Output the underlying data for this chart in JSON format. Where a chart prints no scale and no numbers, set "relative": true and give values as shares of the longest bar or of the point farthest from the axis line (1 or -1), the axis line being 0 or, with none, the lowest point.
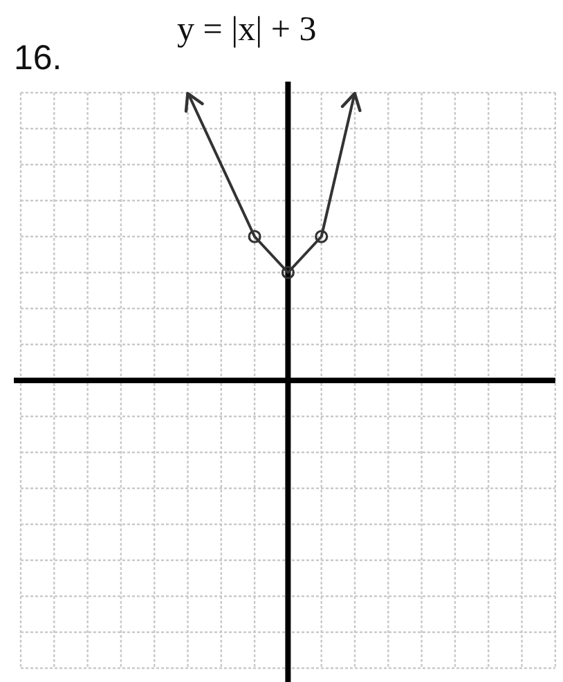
{
  "chart_data": {
    "type": "line",
    "title": "y = |x| + 3",
    "annotations": [
      "16."
    ],
    "categories": [
      null,
      null,
      null,
      null,
      null,
      null,
      null,
      null,
      null,
      null,
      null,
      null,
      null,
      null,
      null,
      null,
      null
    ],
    "values": [
      null,
      null,
      null,
      null,
      null,
      1,
      null,
      0.5,
      0.375,
      0.5,
      1,
      null,
      null,
      null,
      null,
      null,
      null
    ],
    "color": "#333333",
    "relative": true,
    "grid": true,
    "tick_labels": false,
    "marker": "circle"
  }
}
